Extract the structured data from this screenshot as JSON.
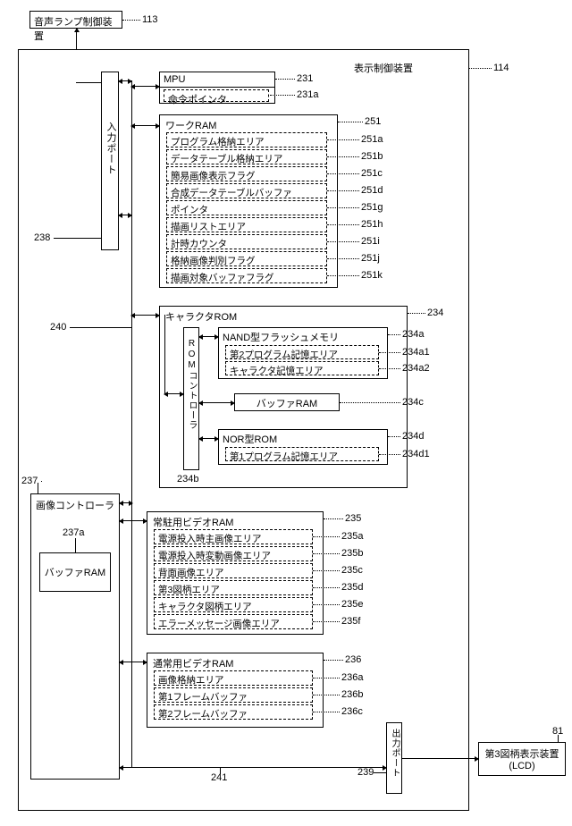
{
  "top_box": {
    "label": "音声ランプ制御装置",
    "ref": "113"
  },
  "main_box": {
    "label": "表示制御装置",
    "ref": "114"
  },
  "input_port": {
    "label": "入力ポート",
    "ref": "238"
  },
  "mpu": {
    "title": "MPU",
    "ref": "231",
    "rows": [
      {
        "label": "命令ポインタ",
        "ref": "231a"
      }
    ]
  },
  "work_ram": {
    "title": "ワークRAM",
    "ref": "251",
    "rows": [
      {
        "label": "プログラム格納エリア",
        "ref": "251a"
      },
      {
        "label": "データテーブル格納エリア",
        "ref": "251b"
      },
      {
        "label": "簡易画像表示フラグ",
        "ref": "251c"
      },
      {
        "label": "合成データテーブルバッファ",
        "ref": "251d"
      },
      {
        "label": "ポインタ",
        "ref": "251g"
      },
      {
        "label": "描画リストエリア",
        "ref": "251h"
      },
      {
        "label": "計時カウンタ",
        "ref": "251i"
      },
      {
        "label": "格納画像判別フラグ",
        "ref": "251j"
      },
      {
        "label": "描画対象バッファフラグ",
        "ref": "251k"
      }
    ]
  },
  "bus": {
    "ref": "240"
  },
  "char_rom": {
    "title": "キャラクタROM",
    "ref": "234",
    "ctrl": {
      "label": "ROMコントローラ",
      "ref": "234b"
    },
    "nand": {
      "title": "NAND型フラッシュメモリ",
      "ref": "234a",
      "rows": [
        {
          "label": "第2プログラム記憶エリア",
          "ref": "234a1"
        },
        {
          "label": "キャラクタ記憶エリア",
          "ref": "234a2"
        }
      ]
    },
    "buf": {
      "label": "バッファRAM",
      "ref": "234c"
    },
    "nor": {
      "title": "NOR型ROM",
      "ref": "234d",
      "rows": [
        {
          "label": "第1プログラム記憶エリア",
          "ref": "234d1"
        }
      ]
    }
  },
  "img_ctrl": {
    "label": "画像コントローラ",
    "ref": "237",
    "inner": {
      "label": "バッファRAM",
      "ref": "237a"
    }
  },
  "resident_vram": {
    "title": "常駐用ビデオRAM",
    "ref": "235",
    "rows": [
      {
        "label": "電源投入時主画像エリア",
        "ref": "235a"
      },
      {
        "label": "電源投入時変動画像エリア",
        "ref": "235b"
      },
      {
        "label": "背面画像エリア",
        "ref": "235c"
      },
      {
        "label": "第3図柄エリア",
        "ref": "235d"
      },
      {
        "label": "キャラクタ図柄エリア",
        "ref": "235e"
      },
      {
        "label": "エラーメッセージ画像エリア",
        "ref": "235f"
      }
    ]
  },
  "normal_vram": {
    "title": "通常用ビデオRAM",
    "ref": "236",
    "rows": [
      {
        "label": "画像格納エリア",
        "ref": "236a"
      },
      {
        "label": "第1フレームバッファ",
        "ref": "236b"
      },
      {
        "label": "第2フレームバッファ",
        "ref": "236c"
      }
    ]
  },
  "out_port": {
    "label": "出力ポート",
    "ref": "239"
  },
  "bus2": {
    "ref": "241"
  },
  "lcd": {
    "label1": "第3図柄表示装置",
    "label2": "(LCD)",
    "ref": "81"
  }
}
